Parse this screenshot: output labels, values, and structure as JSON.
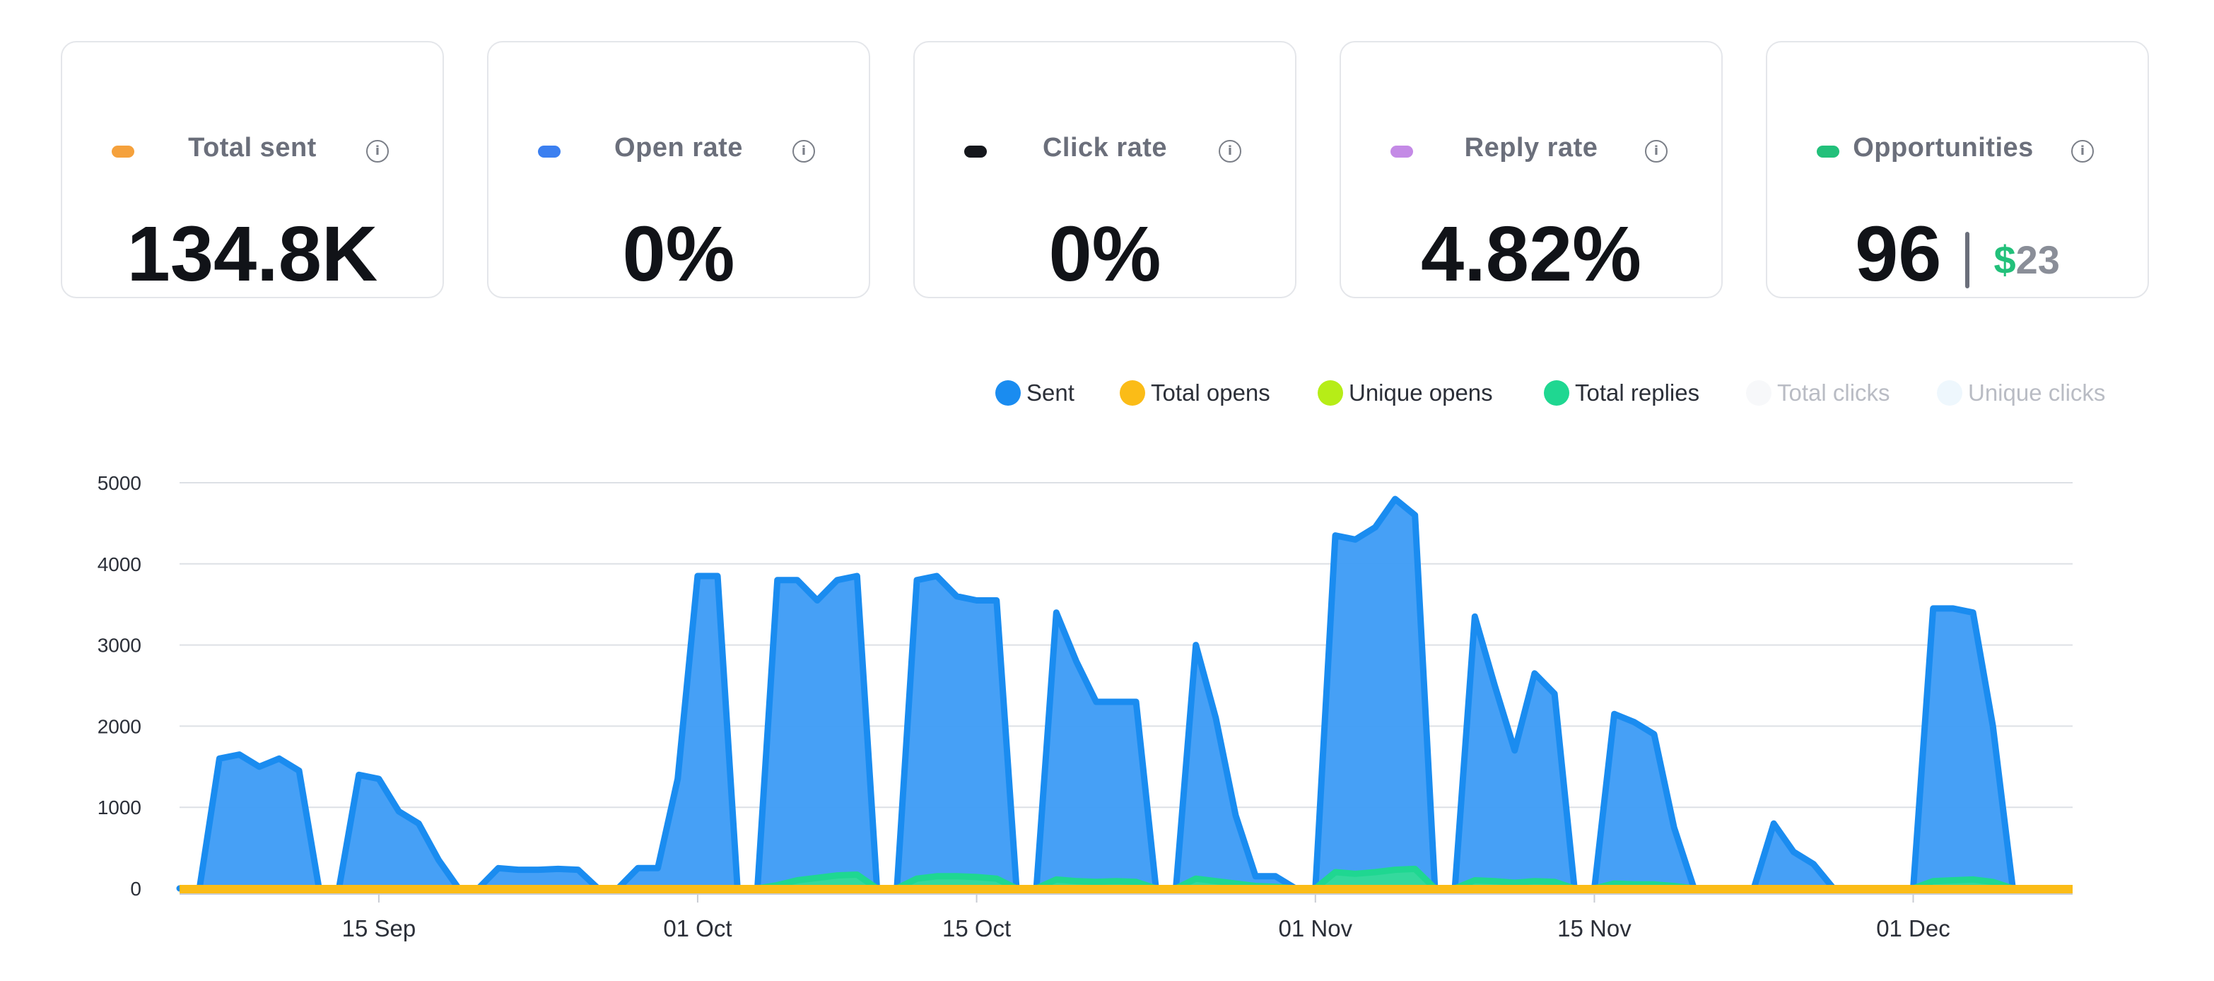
{
  "metrics": [
    {
      "label": "Total sent",
      "value": "134.8K",
      "color": "#f5a13c",
      "info_icon": "info-icon"
    },
    {
      "label": "Open rate",
      "value": "0%",
      "color": "#3b7ff0",
      "info_icon": "info-icon"
    },
    {
      "label": "Click rate",
      "value": "0%",
      "color": "#15171c",
      "info_icon": "info-icon"
    },
    {
      "label": "Reply rate",
      "value": "4.82%",
      "color": "#c48ae6",
      "info_icon": "info-icon"
    },
    {
      "label": "Opportunities",
      "value": "96",
      "extra_symbol": "$",
      "extra_value": "23",
      "color": "#22c07a",
      "info_icon": "info-icon"
    }
  ],
  "legend": [
    {
      "label": "Sent",
      "color": "#1a8cf0",
      "active": true
    },
    {
      "label": "Total opens",
      "color": "#fbbc17",
      "active": true
    },
    {
      "label": "Unique opens",
      "color": "#b6ed17",
      "active": true
    },
    {
      "label": "Total replies",
      "color": "#1fd791",
      "active": true
    },
    {
      "label": "Total clicks",
      "color": "#f7f8fa",
      "active": false
    },
    {
      "label": "Unique clicks",
      "color": "#eef7fd",
      "active": false
    }
  ],
  "chart_data": {
    "type": "area",
    "x_start": "2023-09-05",
    "x_end": "2023-12-09",
    "xticks": [
      {
        "date": "2023-09-15",
        "label": "15 Sep"
      },
      {
        "date": "2023-10-01",
        "label": "01 Oct"
      },
      {
        "date": "2023-10-15",
        "label": "15 Oct"
      },
      {
        "date": "2023-11-01",
        "label": "01 Nov"
      },
      {
        "date": "2023-11-15",
        "label": "15 Nov"
      },
      {
        "date": "2023-12-01",
        "label": "01 Dec"
      }
    ],
    "yticks": [
      0,
      1000,
      2000,
      3000,
      4000,
      5000
    ],
    "ylim": [
      0,
      5000
    ],
    "grid": true,
    "series": [
      {
        "name": "Sent",
        "color": "#1a8cf0",
        "fill": "#3c9bf6",
        "points": [
          [
            "2023-09-05",
            0
          ],
          [
            "2023-09-06",
            0
          ],
          [
            "2023-09-07",
            1600
          ],
          [
            "2023-09-08",
            1650
          ],
          [
            "2023-09-09",
            1500
          ],
          [
            "2023-09-10",
            1600
          ],
          [
            "2023-09-11",
            1450
          ],
          [
            "2023-09-12",
            0
          ],
          [
            "2023-09-13",
            0
          ],
          [
            "2023-09-14",
            1400
          ],
          [
            "2023-09-15",
            1350
          ],
          [
            "2023-09-16",
            950
          ],
          [
            "2023-09-17",
            800
          ],
          [
            "2023-09-18",
            350
          ],
          [
            "2023-09-19",
            0
          ],
          [
            "2023-09-20",
            0
          ],
          [
            "2023-09-21",
            250
          ],
          [
            "2023-09-22",
            230
          ],
          [
            "2023-09-23",
            230
          ],
          [
            "2023-09-24",
            240
          ],
          [
            "2023-09-25",
            230
          ],
          [
            "2023-09-26",
            0
          ],
          [
            "2023-09-27",
            0
          ],
          [
            "2023-09-28",
            250
          ],
          [
            "2023-09-29",
            250
          ],
          [
            "2023-09-30",
            1350
          ],
          [
            "2023-10-01",
            3850
          ],
          [
            "2023-10-02",
            3850
          ],
          [
            "2023-10-03",
            0
          ],
          [
            "2023-10-04",
            0
          ],
          [
            "2023-10-05",
            3800
          ],
          [
            "2023-10-06",
            3800
          ],
          [
            "2023-10-07",
            3550
          ],
          [
            "2023-10-08",
            3800
          ],
          [
            "2023-10-09",
            3850
          ],
          [
            "2023-10-10",
            0
          ],
          [
            "2023-10-11",
            0
          ],
          [
            "2023-10-12",
            3800
          ],
          [
            "2023-10-13",
            3850
          ],
          [
            "2023-10-14",
            3600
          ],
          [
            "2023-10-15",
            3550
          ],
          [
            "2023-10-16",
            3550
          ],
          [
            "2023-10-17",
            0
          ],
          [
            "2023-10-18",
            0
          ],
          [
            "2023-10-19",
            3400
          ],
          [
            "2023-10-20",
            2800
          ],
          [
            "2023-10-21",
            2300
          ],
          [
            "2023-10-22",
            2300
          ],
          [
            "2023-10-23",
            2300
          ],
          [
            "2023-10-24",
            0
          ],
          [
            "2023-10-25",
            0
          ],
          [
            "2023-10-26",
            3000
          ],
          [
            "2023-10-27",
            2100
          ],
          [
            "2023-10-28",
            900
          ],
          [
            "2023-10-29",
            150
          ],
          [
            "2023-10-30",
            150
          ],
          [
            "2023-10-31",
            0
          ],
          [
            "2023-11-01",
            0
          ],
          [
            "2023-11-02",
            4350
          ],
          [
            "2023-11-03",
            4300
          ],
          [
            "2023-11-04",
            4450
          ],
          [
            "2023-11-05",
            4800
          ],
          [
            "2023-11-06",
            4600
          ],
          [
            "2023-11-07",
            0
          ],
          [
            "2023-11-08",
            0
          ],
          [
            "2023-11-09",
            3350
          ],
          [
            "2023-11-10",
            2500
          ],
          [
            "2023-11-11",
            1700
          ],
          [
            "2023-11-12",
            2650
          ],
          [
            "2023-11-13",
            2400
          ],
          [
            "2023-11-14",
            0
          ],
          [
            "2023-11-15",
            0
          ],
          [
            "2023-11-16",
            2150
          ],
          [
            "2023-11-17",
            2050
          ],
          [
            "2023-11-18",
            1900
          ],
          [
            "2023-11-19",
            750
          ],
          [
            "2023-11-20",
            0
          ],
          [
            "2023-11-21",
            0
          ],
          [
            "2023-11-22",
            0
          ],
          [
            "2023-11-23",
            0
          ],
          [
            "2023-11-24",
            800
          ],
          [
            "2023-11-25",
            450
          ],
          [
            "2023-11-26",
            300
          ],
          [
            "2023-11-27",
            0
          ],
          [
            "2023-11-28",
            0
          ],
          [
            "2023-11-29",
            0
          ],
          [
            "2023-11-30",
            0
          ],
          [
            "2023-12-01",
            0
          ],
          [
            "2023-12-02",
            3450
          ],
          [
            "2023-12-03",
            3450
          ],
          [
            "2023-12-04",
            3400
          ],
          [
            "2023-12-05",
            2000
          ],
          [
            "2023-12-06",
            0
          ]
        ]
      },
      {
        "name": "Total replies",
        "color": "#1fd791",
        "fill": "#34dc98",
        "points": [
          [
            "2023-10-04",
            0
          ],
          [
            "2023-10-05",
            40
          ],
          [
            "2023-10-06",
            100
          ],
          [
            "2023-10-07",
            130
          ],
          [
            "2023-10-08",
            160
          ],
          [
            "2023-10-09",
            170
          ],
          [
            "2023-10-10",
            0
          ],
          [
            "2023-10-11",
            0
          ],
          [
            "2023-10-12",
            120
          ],
          [
            "2023-10-13",
            150
          ],
          [
            "2023-10-14",
            150
          ],
          [
            "2023-10-15",
            140
          ],
          [
            "2023-10-16",
            120
          ],
          [
            "2023-10-17",
            0
          ],
          [
            "2023-10-18",
            0
          ],
          [
            "2023-10-19",
            110
          ],
          [
            "2023-10-20",
            90
          ],
          [
            "2023-10-21",
            80
          ],
          [
            "2023-10-22",
            90
          ],
          [
            "2023-10-23",
            80
          ],
          [
            "2023-10-24",
            0
          ],
          [
            "2023-10-25",
            0
          ],
          [
            "2023-10-26",
            120
          ],
          [
            "2023-10-27",
            90
          ],
          [
            "2023-10-28",
            60
          ],
          [
            "2023-10-29",
            30
          ],
          [
            "2023-10-30",
            20
          ],
          [
            "2023-10-31",
            0
          ],
          [
            "2023-11-01",
            0
          ],
          [
            "2023-11-02",
            200
          ],
          [
            "2023-11-03",
            180
          ],
          [
            "2023-11-04",
            200
          ],
          [
            "2023-11-05",
            230
          ],
          [
            "2023-11-06",
            240
          ],
          [
            "2023-11-07",
            0
          ],
          [
            "2023-11-08",
            0
          ],
          [
            "2023-11-09",
            100
          ],
          [
            "2023-11-10",
            90
          ],
          [
            "2023-11-11",
            70
          ],
          [
            "2023-11-12",
            90
          ],
          [
            "2023-11-13",
            80
          ],
          [
            "2023-11-14",
            0
          ],
          [
            "2023-11-15",
            0
          ],
          [
            "2023-11-16",
            60
          ],
          [
            "2023-11-17",
            50
          ],
          [
            "2023-11-18",
            50
          ],
          [
            "2023-11-19",
            30
          ],
          [
            "2023-11-20",
            0
          ],
          [
            "2023-12-01",
            0
          ],
          [
            "2023-12-02",
            90
          ],
          [
            "2023-12-03",
            100
          ],
          [
            "2023-12-04",
            110
          ],
          [
            "2023-12-05",
            80
          ],
          [
            "2023-12-06",
            0
          ]
        ]
      },
      {
        "name": "Total opens",
        "color": "#fbbc17",
        "baseline": 0
      },
      {
        "name": "Unique opens",
        "color": "#b6ed17",
        "baseline": 0
      }
    ]
  }
}
